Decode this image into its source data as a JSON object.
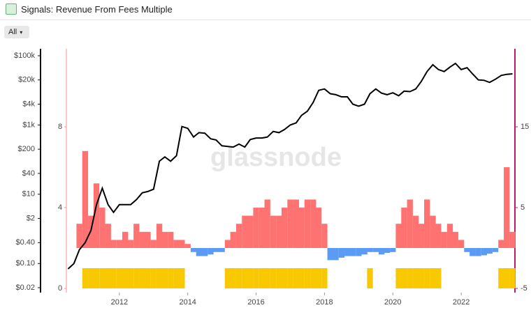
{
  "header": {
    "title": "Signals: Revenue From Fees Multiple",
    "range_button": "All"
  },
  "chart_data": {
    "type": "signal-combo",
    "watermark": "glassnode",
    "x": [
      2010.5,
      2010.67,
      2010.83,
      2011.0,
      2011.17,
      2011.33,
      2011.5,
      2011.67,
      2011.83,
      2012.0,
      2012.17,
      2012.33,
      2012.5,
      2012.67,
      2012.83,
      2013.0,
      2013.17,
      2013.33,
      2013.5,
      2013.67,
      2013.83,
      2014.0,
      2014.17,
      2014.33,
      2014.5,
      2014.67,
      2014.83,
      2015.0,
      2015.17,
      2015.33,
      2015.5,
      2015.67,
      2015.83,
      2016.0,
      2016.17,
      2016.33,
      2016.5,
      2016.67,
      2016.83,
      2017.0,
      2017.17,
      2017.33,
      2017.5,
      2017.67,
      2017.83,
      2018.0,
      2018.17,
      2018.33,
      2018.5,
      2018.67,
      2018.83,
      2019.0,
      2019.17,
      2019.33,
      2019.5,
      2019.67,
      2019.83,
      2020.0,
      2020.17,
      2020.33,
      2020.5,
      2020.67,
      2020.83,
      2021.0,
      2021.17,
      2021.33,
      2021.5,
      2021.67,
      2021.83,
      2022.0,
      2022.17,
      2022.33,
      2022.5,
      2022.67,
      2022.83,
      2023.0,
      2023.17,
      2023.33,
      2023.5
    ],
    "xlim": [
      2010.45,
      2023.53
    ],
    "xticks": [
      2012,
      2014,
      2016,
      2018,
      2020,
      2022
    ],
    "ylim": [
      0.02,
      100000
    ],
    "log_y": true,
    "yticks": [
      {
        "value": 100000,
        "label": "$100k"
      },
      {
        "value": 20000,
        "label": "$20k"
      },
      {
        "value": 4000,
        "label": "$4k"
      },
      {
        "value": 1000,
        "label": "$1k"
      },
      {
        "value": 200,
        "label": "$200"
      },
      {
        "value": 40,
        "label": "$40"
      },
      {
        "value": 10,
        "label": "$10"
      },
      {
        "value": 2,
        "label": "$2"
      },
      {
        "value": 0.4,
        "label": "$0.40"
      },
      {
        "value": 0.1,
        "label": "$0.10"
      },
      {
        "value": 0.02,
        "label": "$0.02"
      }
    ],
    "y2lim": [
      -5,
      24.66
    ],
    "y2ticks": [
      -5,
      5,
      15
    ],
    "y3lim": [
      0,
      11.86
    ],
    "y3ticks": [
      0,
      4,
      8
    ],
    "series": [
      {
        "kind": "line",
        "color": "#000000",
        "values": [
          0.07,
          0.1,
          0.25,
          0.4,
          0.9,
          5,
          15,
          5,
          3,
          5,
          5,
          5,
          7,
          11,
          12,
          14,
          90,
          120,
          90,
          130,
          900,
          800,
          450,
          600,
          580,
          400,
          370,
          250,
          240,
          230,
          280,
          230,
          380,
          420,
          420,
          450,
          650,
          600,
          740,
          1000,
          1150,
          1900,
          2500,
          4500,
          10000,
          11000,
          8000,
          7500,
          6500,
          6500,
          4000,
          3500,
          4000,
          8000,
          11000,
          8300,
          7500,
          8500,
          7000,
          9500,
          9200,
          11000,
          18000,
          35000,
          55000,
          40000,
          35000,
          47000,
          60000,
          40000,
          45000,
          30000,
          20000,
          19500,
          17000,
          21000,
          27000,
          29000,
          30000
        ]
      },
      {
        "kind": "bar",
        "axis": "y2",
        "color": "#ff7272",
        "negative_color": "#5b9bf5",
        "values": [
          0,
          0,
          3,
          12,
          4,
          8,
          5,
          3,
          1,
          1,
          2,
          1,
          3,
          2,
          2,
          1,
          3,
          2,
          2,
          1,
          1,
          0.5,
          -0.5,
          -1,
          -1,
          -0.8,
          -0.5,
          -0.5,
          1,
          2,
          3,
          4,
          4,
          5,
          5,
          6,
          4,
          4,
          5,
          6,
          6,
          5,
          6,
          6,
          5,
          3,
          -1.5,
          -1.5,
          -1.2,
          -1,
          -1,
          -1,
          -0.8,
          -0.5,
          -0.5,
          -0.8,
          -0.6,
          -0.5,
          3,
          5,
          6,
          4,
          3,
          6,
          4,
          3,
          2,
          3,
          2,
          1,
          -0.5,
          -1,
          -1,
          -0.9,
          -0.7,
          -0.5,
          1,
          10,
          2
        ]
      },
      {
        "kind": "signal",
        "axis": "y3",
        "color": "#f9c900",
        "values": [
          0,
          0,
          0,
          1,
          1,
          1,
          1,
          1,
          1,
          1,
          1,
          1,
          1,
          1,
          1,
          1,
          1,
          1,
          1,
          1,
          1,
          0,
          0,
          0,
          0,
          0,
          0,
          0,
          1,
          1,
          1,
          1,
          1,
          1,
          1,
          1,
          1,
          1,
          1,
          1,
          1,
          1,
          1,
          1,
          1,
          1,
          0,
          0,
          0,
          0,
          0,
          0,
          0,
          1,
          0,
          0,
          0,
          0,
          1,
          1,
          1,
          1,
          1,
          1,
          1,
          1,
          0,
          0,
          0,
          0,
          0,
          0,
          0,
          0,
          0,
          0,
          1,
          1,
          1
        ]
      }
    ]
  }
}
